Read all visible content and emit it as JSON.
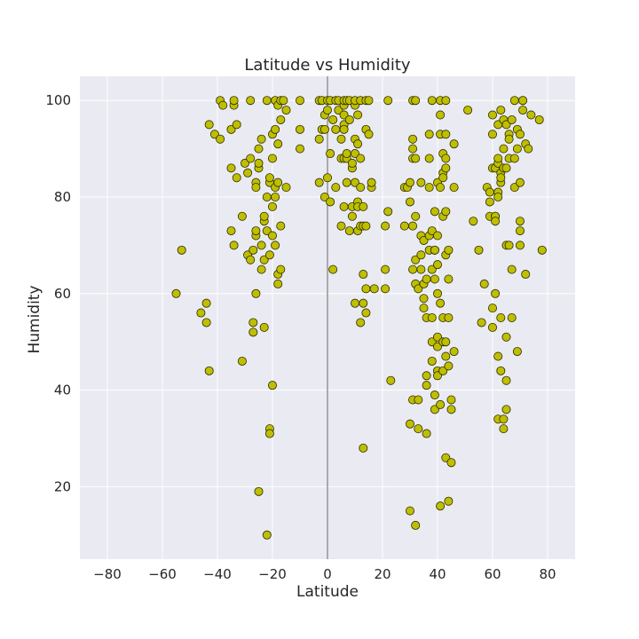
{
  "chart_data": {
    "type": "scatter",
    "title": "Latitude vs Humidity",
    "xlabel": "Latitude",
    "ylabel": "Humidity",
    "xlim": [
      -90,
      90
    ],
    "ylim": [
      5,
      105
    ],
    "xticks": [
      -80,
      -60,
      -40,
      -20,
      0,
      20,
      40,
      60,
      80
    ],
    "yticks": [
      20,
      40,
      60,
      80,
      100
    ],
    "xtick_labels": [
      "−80",
      "−60",
      "−40",
      "−20",
      "0",
      "20",
      "40",
      "60",
      "80"
    ],
    "ytick_labels": [
      "20",
      "40",
      "60",
      "80",
      "100"
    ],
    "grid": true,
    "reference_line_x": 0,
    "marker_color": "#bfbf00",
    "marker_edge_color": "#2b2b00",
    "background_color": "#eaeaf2",
    "grid_color": "#ffffff",
    "points": [
      [
        -55,
        60
      ],
      [
        -53,
        69
      ],
      [
        -46,
        56
      ],
      [
        -44,
        58
      ],
      [
        -44,
        54
      ],
      [
        -43,
        44
      ],
      [
        -43,
        95
      ],
      [
        -41,
        93
      ],
      [
        -39,
        92
      ],
      [
        -39,
        100
      ],
      [
        -38,
        99
      ],
      [
        -35,
        94
      ],
      [
        -35,
        86
      ],
      [
        -35,
        73
      ],
      [
        -34,
        70
      ],
      [
        -34,
        99
      ],
      [
        -34,
        100
      ],
      [
        -33,
        95
      ],
      [
        -33,
        84
      ],
      [
        -31,
        46
      ],
      [
        -31,
        76
      ],
      [
        -30,
        87
      ],
      [
        -29,
        85
      ],
      [
        -29,
        68
      ],
      [
        -28,
        88
      ],
      [
        -28,
        67
      ],
      [
        -28,
        100
      ],
      [
        -27,
        52
      ],
      [
        -27,
        54
      ],
      [
        -27,
        69
      ],
      [
        -26,
        72
      ],
      [
        -26,
        73
      ],
      [
        -26,
        60
      ],
      [
        -26,
        83
      ],
      [
        -26,
        82
      ],
      [
        -25,
        86
      ],
      [
        -25,
        87
      ],
      [
        -25,
        90
      ],
      [
        -25,
        19
      ],
      [
        -24,
        65
      ],
      [
        -24,
        70
      ],
      [
        -24,
        92
      ],
      [
        -23,
        67
      ],
      [
        -23,
        75
      ],
      [
        -23,
        76
      ],
      [
        -23,
        53
      ],
      [
        -22,
        100
      ],
      [
        -22,
        10
      ],
      [
        -22,
        80
      ],
      [
        -22,
        73
      ],
      [
        -21,
        68
      ],
      [
        -21,
        32
      ],
      [
        -21,
        31
      ],
      [
        -21,
        83
      ],
      [
        -21,
        84
      ],
      [
        -20,
        41
      ],
      [
        -20,
        93
      ],
      [
        -20,
        88
      ],
      [
        -20,
        78
      ],
      [
        -20,
        72
      ],
      [
        -19,
        94
      ],
      [
        -19,
        80
      ],
      [
        -19,
        70
      ],
      [
        -19,
        100
      ],
      [
        -19,
        82
      ],
      [
        -18,
        91
      ],
      [
        -18,
        64
      ],
      [
        -18,
        62
      ],
      [
        -18,
        83
      ],
      [
        -18,
        99
      ],
      [
        -17,
        96
      ],
      [
        -17,
        65
      ],
      [
        -17,
        74
      ],
      [
        -17,
        100
      ],
      [
        -16,
        100
      ],
      [
        -15,
        82
      ],
      [
        -15,
        98
      ],
      [
        -10,
        90
      ],
      [
        -10,
        100
      ],
      [
        -10,
        94
      ],
      [
        -3,
        92
      ],
      [
        -3,
        100
      ],
      [
        -3,
        83
      ],
      [
        -2,
        94
      ],
      [
        -2,
        100
      ],
      [
        -1,
        80
      ],
      [
        -1,
        97
      ],
      [
        -1,
        94
      ],
      [
        0,
        100
      ],
      [
        0,
        98
      ],
      [
        0,
        84
      ],
      [
        1,
        79
      ],
      [
        1,
        100
      ],
      [
        1,
        89
      ],
      [
        2,
        96
      ],
      [
        2,
        65
      ],
      [
        3,
        94
      ],
      [
        3,
        82
      ],
      [
        3,
        100
      ],
      [
        4,
        98
      ],
      [
        4,
        100
      ],
      [
        5,
        92
      ],
      [
        5,
        88
      ],
      [
        5,
        74
      ],
      [
        6,
        97
      ],
      [
        6,
        95
      ],
      [
        6,
        94
      ],
      [
        6,
        99
      ],
      [
        6,
        100
      ],
      [
        6,
        78
      ],
      [
        6,
        88
      ],
      [
        7,
        88
      ],
      [
        7,
        83
      ],
      [
        7,
        100
      ],
      [
        7,
        89
      ],
      [
        8,
        96
      ],
      [
        8,
        73
      ],
      [
        8,
        100
      ],
      [
        9,
        86
      ],
      [
        9,
        87
      ],
      [
        9,
        78
      ],
      [
        9,
        76
      ],
      [
        10,
        92
      ],
      [
        10,
        99
      ],
      [
        10,
        100
      ],
      [
        10,
        83
      ],
      [
        10,
        58
      ],
      [
        10,
        89
      ],
      [
        11,
        91
      ],
      [
        11,
        97
      ],
      [
        11,
        79
      ],
      [
        11,
        73
      ],
      [
        11,
        78
      ],
      [
        12,
        82
      ],
      [
        12,
        88
      ],
      [
        12,
        100
      ],
      [
        12,
        74
      ],
      [
        12,
        54
      ],
      [
        13,
        64
      ],
      [
        13,
        58
      ],
      [
        13,
        78
      ],
      [
        13,
        74
      ],
      [
        13,
        28
      ],
      [
        14,
        100
      ],
      [
        14,
        94
      ],
      [
        14,
        56
      ],
      [
        14,
        61
      ],
      [
        14,
        74
      ],
      [
        15,
        93
      ],
      [
        15,
        100
      ],
      [
        16,
        82
      ],
      [
        16,
        83
      ],
      [
        17,
        61
      ],
      [
        21,
        65
      ],
      [
        21,
        74
      ],
      [
        21,
        61
      ],
      [
        22,
        77
      ],
      [
        22,
        100
      ],
      [
        23,
        42
      ],
      [
        28,
        82
      ],
      [
        28,
        74
      ],
      [
        29,
        82
      ],
      [
        30,
        83
      ],
      [
        30,
        15
      ],
      [
        30,
        33
      ],
      [
        30,
        79
      ],
      [
        31,
        88
      ],
      [
        31,
        92
      ],
      [
        31,
        90
      ],
      [
        31,
        100
      ],
      [
        31,
        38
      ],
      [
        31,
        65
      ],
      [
        31,
        74
      ],
      [
        32,
        62
      ],
      [
        32,
        12
      ],
      [
        32,
        67
      ],
      [
        32,
        76
      ],
      [
        32,
        88
      ],
      [
        32,
        100
      ],
      [
        33,
        32
      ],
      [
        33,
        38
      ],
      [
        33,
        61
      ],
      [
        34,
        65
      ],
      [
        34,
        83
      ],
      [
        34,
        72
      ],
      [
        34,
        68
      ],
      [
        35,
        71
      ],
      [
        35,
        57
      ],
      [
        35,
        62
      ],
      [
        35,
        59
      ],
      [
        36,
        55
      ],
      [
        36,
        63
      ],
      [
        36,
        43
      ],
      [
        36,
        41
      ],
      [
        36,
        31
      ],
      [
        37,
        93
      ],
      [
        37,
        69
      ],
      [
        37,
        88
      ],
      [
        37,
        72
      ],
      [
        37,
        82
      ],
      [
        38,
        46
      ],
      [
        38,
        50
      ],
      [
        38,
        65
      ],
      [
        38,
        100
      ],
      [
        38,
        73
      ],
      [
        38,
        55
      ],
      [
        39,
        39
      ],
      [
        39,
        36
      ],
      [
        39,
        63
      ],
      [
        39,
        69
      ],
      [
        39,
        77
      ],
      [
        39,
        69
      ],
      [
        40,
        66
      ],
      [
        40,
        83
      ],
      [
        40,
        51
      ],
      [
        40,
        44
      ],
      [
        40,
        72
      ],
      [
        40,
        60
      ],
      [
        40,
        49
      ],
      [
        40,
        43
      ],
      [
        41,
        37
      ],
      [
        41,
        16
      ],
      [
        41,
        97
      ],
      [
        41,
        93
      ],
      [
        41,
        100
      ],
      [
        41,
        82
      ],
      [
        41,
        58
      ],
      [
        42,
        85
      ],
      [
        42,
        84
      ],
      [
        42,
        76
      ],
      [
        42,
        55
      ],
      [
        42,
        50
      ],
      [
        42,
        44
      ],
      [
        42,
        89
      ],
      [
        43,
        26
      ],
      [
        43,
        86
      ],
      [
        43,
        88
      ],
      [
        43,
        68
      ],
      [
        43,
        47
      ],
      [
        43,
        50
      ],
      [
        43,
        100
      ],
      [
        43,
        93
      ],
      [
        43,
        77
      ],
      [
        44,
        69
      ],
      [
        44,
        63
      ],
      [
        44,
        55
      ],
      [
        44,
        45
      ],
      [
        44,
        17
      ],
      [
        45,
        38
      ],
      [
        45,
        25
      ],
      [
        45,
        36
      ],
      [
        46,
        82
      ],
      [
        46,
        91
      ],
      [
        46,
        48
      ],
      [
        51,
        98
      ],
      [
        53,
        75
      ],
      [
        55,
        69
      ],
      [
        56,
        54
      ],
      [
        57,
        62
      ],
      [
        58,
        82
      ],
      [
        59,
        81
      ],
      [
        59,
        76
      ],
      [
        59,
        79
      ],
      [
        60,
        97
      ],
      [
        60,
        93
      ],
      [
        60,
        86
      ],
      [
        60,
        57
      ],
      [
        60,
        53
      ],
      [
        61,
        60
      ],
      [
        61,
        76
      ],
      [
        61,
        86
      ],
      [
        61,
        76
      ],
      [
        61,
        75
      ],
      [
        62,
        47
      ],
      [
        62,
        34
      ],
      [
        62,
        81
      ],
      [
        62,
        80
      ],
      [
        62,
        87
      ],
      [
        62,
        95
      ],
      [
        62,
        88
      ],
      [
        63,
        55
      ],
      [
        63,
        44
      ],
      [
        63,
        98
      ],
      [
        63,
        83
      ],
      [
        63,
        85
      ],
      [
        63,
        84
      ],
      [
        64,
        32
      ],
      [
        64,
        34
      ],
      [
        64,
        86
      ],
      [
        64,
        90
      ],
      [
        64,
        96
      ],
      [
        65,
        51
      ],
      [
        65,
        42
      ],
      [
        65,
        36
      ],
      [
        65,
        70
      ],
      [
        65,
        86
      ],
      [
        65,
        95
      ],
      [
        66,
        93
      ],
      [
        66,
        88
      ],
      [
        66,
        70
      ],
      [
        66,
        92
      ],
      [
        67,
        55
      ],
      [
        67,
        65
      ],
      [
        67,
        96
      ],
      [
        68,
        82
      ],
      [
        68,
        88
      ],
      [
        68,
        100
      ],
      [
        69,
        48
      ],
      [
        69,
        90
      ],
      [
        69,
        94
      ],
      [
        70,
        93
      ],
      [
        70,
        75
      ],
      [
        70,
        73
      ],
      [
        70,
        83
      ],
      [
        70,
        70
      ],
      [
        71,
        100
      ],
      [
        71,
        98
      ],
      [
        71,
        100
      ],
      [
        72,
        91
      ],
      [
        72,
        64
      ],
      [
        73,
        90
      ],
      [
        74,
        97
      ],
      [
        77,
        96
      ],
      [
        78,
        69
      ]
    ]
  }
}
